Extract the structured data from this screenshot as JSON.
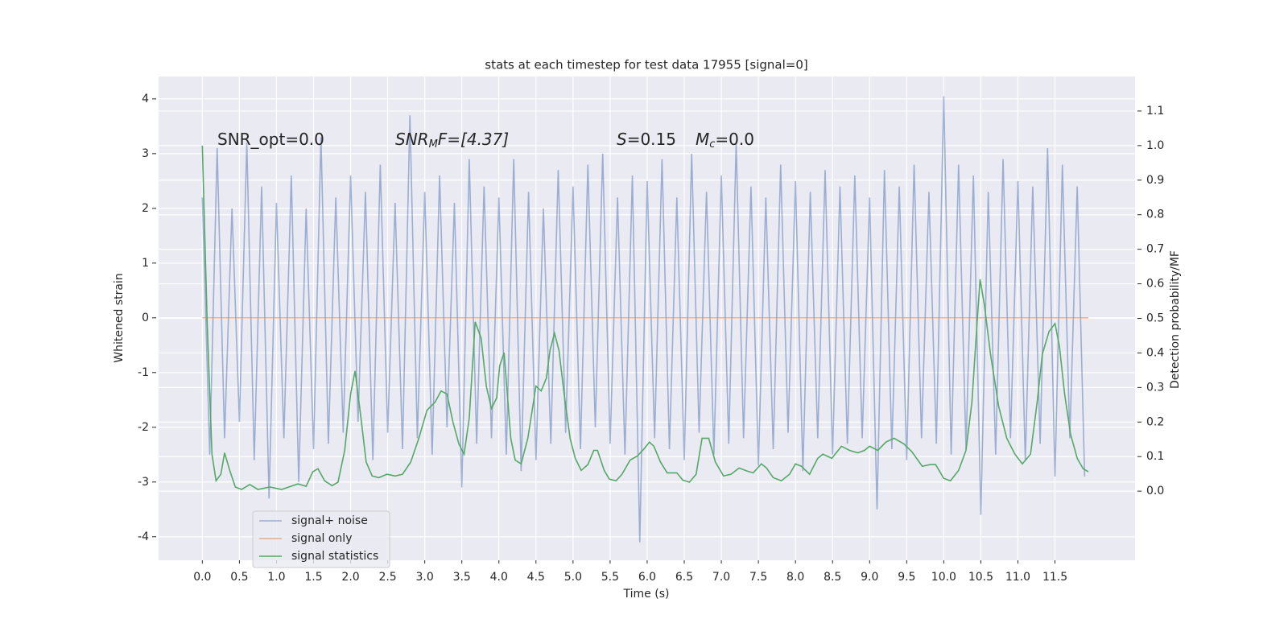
{
  "chart_data": {
    "type": "line",
    "title": "stats at each timestep for test data 17955 [signal=0]",
    "x_label": "Time (s)",
    "y_label": "Whitened strain",
    "y2_label": "Detection probability/MF",
    "annotations": [
      {
        "parts": [
          "SNR_opt=0.0"
        ]
      },
      {
        "parts": [
          "SNR",
          "M",
          "F=[4.37]"
        ]
      },
      {
        "parts": [
          "S",
          "=0.15",
          "M",
          "c",
          "=0.0"
        ]
      }
    ],
    "xlim": [
      -0.59,
      12.58
    ],
    "ylim": [
      -4.43,
      4.41
    ],
    "y2lim": [
      -0.2,
      1.2
    ],
    "xticks": [
      {
        "value": 0,
        "label": "0.0"
      },
      {
        "value": 0.5,
        "label": "0.5"
      },
      {
        "value": 1,
        "label": "1.0"
      },
      {
        "value": 1.5,
        "label": "1.5"
      },
      {
        "value": 2,
        "label": "2.0"
      },
      {
        "value": 2.5,
        "label": "2.5"
      },
      {
        "value": 3,
        "label": "3.0"
      },
      {
        "value": 3.5,
        "label": "3.5"
      },
      {
        "value": 4,
        "label": "4.0"
      },
      {
        "value": 4.5,
        "label": "4.5"
      },
      {
        "value": 5,
        "label": "5.0"
      },
      {
        "value": 5.5,
        "label": "5.5"
      },
      {
        "value": 6,
        "label": "6.0"
      },
      {
        "value": 6.5,
        "label": "6.5"
      },
      {
        "value": 7,
        "label": "7.0"
      },
      {
        "value": 7.5,
        "label": "7.5"
      },
      {
        "value": 8,
        "label": "8.0"
      },
      {
        "value": 8.5,
        "label": "8.5"
      },
      {
        "value": 9,
        "label": "9.0"
      },
      {
        "value": 9.5,
        "label": "9.5"
      },
      {
        "value": 10,
        "label": "10.0"
      },
      {
        "value": 10.5,
        "label": "10.5"
      },
      {
        "value": 11,
        "label": "11.0"
      },
      {
        "value": 11.5,
        "label": "11.5"
      }
    ],
    "yticks": [
      -4,
      -3,
      -2,
      -1,
      0,
      1,
      2,
      3,
      4
    ],
    "y2ticks": [
      {
        "value": 0,
        "label": "0.0"
      },
      {
        "value": 0.1,
        "label": "0.1"
      },
      {
        "value": 0.2,
        "label": "0.2"
      },
      {
        "value": 0.3,
        "label": "0.3"
      },
      {
        "value": 0.4,
        "label": "0.4"
      },
      {
        "value": 0.5,
        "label": "0.5"
      },
      {
        "value": 0.6,
        "label": "0.6"
      },
      {
        "value": 0.7,
        "label": "0.7"
      },
      {
        "value": 0.8,
        "label": "0.8"
      },
      {
        "value": 0.9,
        "label": "0.9"
      },
      {
        "value": 1,
        "label": "1.0"
      },
      {
        "value": 1.1,
        "label": "1.1"
      }
    ],
    "grid": true,
    "legend": "lower left",
    "series": [
      {
        "name": "signal+ noise",
        "color": "#4c72b0",
        "opacity": 0.5,
        "x": [
          0,
          0.1,
          0.2,
          0.3,
          0.4,
          0.5,
          0.6,
          0.7,
          0.8,
          0.9,
          1,
          1.1,
          1.2,
          1.3,
          1.4,
          1.5,
          1.6,
          1.7,
          1.8,
          1.9,
          2,
          2.1,
          2.2,
          2.3,
          2.4,
          2.5,
          2.6,
          2.7,
          2.8,
          2.9,
          3,
          3.1,
          3.2,
          3.3,
          3.4,
          3.5,
          3.6,
          3.7,
          3.8,
          3.9,
          4,
          4.1,
          4.2,
          4.3,
          4.4,
          4.5,
          4.6,
          4.7,
          4.8,
          4.9,
          5,
          5.1,
          5.2,
          5.3,
          5.4,
          5.5,
          5.6,
          5.7,
          5.8,
          5.9,
          6,
          6.1,
          6.2,
          6.3,
          6.4,
          6.5,
          6.6,
          6.7,
          6.8,
          6.9,
          7,
          7.1,
          7.2,
          7.3,
          7.4,
          7.5,
          7.6,
          7.7,
          7.8,
          7.9,
          8,
          8.1,
          8.2,
          8.3,
          8.4,
          8.5,
          8.6,
          8.7,
          8.8,
          8.9,
          9,
          9.1,
          9.2,
          9.3,
          9.4,
          9.5,
          9.6,
          9.7,
          9.8,
          9.9,
          10,
          10.1,
          10.2,
          10.3,
          10.4,
          10.5,
          10.6,
          10.7,
          10.8,
          10.9,
          11,
          11.1,
          11.2,
          11.3,
          11.4,
          11.5,
          11.6,
          11.7,
          11.8,
          11.9
        ],
        "values": [
          2.2,
          -2.5,
          3.1,
          -2.2,
          2.0,
          -1.9,
          3.2,
          -2.6,
          2.4,
          -3.3,
          2.1,
          -2.2,
          2.6,
          -3.0,
          2.0,
          -2.4,
          3.3,
          -2.3,
          2.2,
          -2.1,
          2.6,
          -1.9,
          2.3,
          -2.6,
          2.8,
          -2.1,
          2.1,
          -2.4,
          3.7,
          -2.2,
          2.3,
          -2.5,
          2.6,
          -2.0,
          2.1,
          -3.1,
          2.9,
          -2.3,
          2.4,
          -2.2,
          2.2,
          -2.5,
          2.9,
          -2.8,
          2.3,
          -2.6,
          2.0,
          -2.3,
          2.7,
          -2.1,
          2.4,
          -2.4,
          2.8,
          -2.0,
          3.0,
          -2.3,
          2.2,
          -2.5,
          2.6,
          -4.1,
          2.5,
          -2.2,
          2.9,
          -2.4,
          2.2,
          -2.6,
          3.0,
          -2.1,
          2.3,
          -2.5,
          2.6,
          -2.3,
          3.2,
          -2.2,
          2.4,
          -2.7,
          2.2,
          -2.4,
          2.8,
          -2.1,
          2.5,
          -2.8,
          2.3,
          -2.2,
          2.7,
          -2.5,
          2.4,
          -2.3,
          2.6,
          -2.2,
          2.2,
          -3.5,
          2.7,
          -2.4,
          2.4,
          -2.6,
          2.8,
          -2.2,
          2.3,
          -2.3,
          4.05,
          -2.5,
          2.8,
          -2.4,
          2.6,
          -3.6,
          2.3,
          -2.5,
          2.9,
          -2.2,
          2.5,
          -2.6,
          2.4,
          -2.3,
          3.1,
          -2.9,
          2.8,
          -2.2,
          2.4,
          -2.9
        ]
      },
      {
        "name": "signal only",
        "color": "#dd8452",
        "opacity": 0.6,
        "x": [
          0,
          11.95
        ],
        "values": [
          0,
          0
        ]
      },
      {
        "name": "signal statistics",
        "color": "#55a868",
        "opacity": 1,
        "axis": "y2",
        "x": [
          0,
          0.065,
          0.13,
          0.185,
          0.25,
          0.3,
          0.37,
          0.445,
          0.53,
          0.64,
          0.75,
          0.91,
          1.07,
          1.29,
          1.4,
          1.49,
          1.56,
          1.65,
          1.75,
          1.83,
          1.92,
          2,
          2.06,
          2.14,
          2.21,
          2.29,
          2.38,
          2.49,
          2.6,
          2.7,
          2.81,
          2.92,
          3.03,
          3.14,
          3.22,
          3.3,
          3.38,
          3.46,
          3.53,
          3.6,
          3.68,
          3.76,
          3.83,
          3.9,
          3.97,
          4.01,
          4.07,
          4.16,
          4.22,
          4.3,
          4.39,
          4.5,
          4.57,
          4.64,
          4.69,
          4.75,
          4.81,
          4.88,
          4.96,
          5.03,
          5.11,
          5.2,
          5.28,
          5.33,
          5.42,
          5.49,
          5.58,
          5.66,
          5.77,
          5.87,
          5.96,
          6.03,
          6.09,
          6.18,
          6.27,
          6.4,
          6.48,
          6.57,
          6.66,
          6.74,
          6.83,
          6.92,
          7.03,
          7.13,
          7.24,
          7.35,
          7.43,
          7.54,
          7.61,
          7.7,
          7.81,
          7.92,
          8,
          8.08,
          8.19,
          8.3,
          8.37,
          8.49,
          8.62,
          8.73,
          8.84,
          8.93,
          9,
          9.11,
          9.22,
          9.33,
          9.46,
          9.57,
          9.71,
          9.82,
          9.89,
          10,
          10.09,
          10.2,
          10.3,
          10.38,
          10.45,
          10.49,
          10.55,
          10.63,
          10.74,
          10.85,
          10.96,
          11.06,
          11.17,
          11.26,
          11.33,
          11.42,
          11.5,
          11.56,
          11.63,
          11.71,
          11.8,
          11.88,
          11.95
        ],
        "values": [
          1.0,
          0.49,
          0.107,
          0.03,
          0.049,
          0.111,
          0.06,
          0.012,
          0.005,
          0.019,
          0.005,
          0.012,
          0.005,
          0.021,
          0.014,
          0.056,
          0.065,
          0.03,
          0.016,
          0.026,
          0.118,
          0.281,
          0.348,
          0.211,
          0.084,
          0.044,
          0.039,
          0.049,
          0.044,
          0.049,
          0.084,
          0.153,
          0.234,
          0.258,
          0.29,
          0.281,
          0.2,
          0.137,
          0.107,
          0.211,
          0.49,
          0.443,
          0.304,
          0.239,
          0.27,
          0.362,
          0.401,
          0.153,
          0.09,
          0.079,
          0.153,
          0.304,
          0.29,
          0.327,
          0.408,
          0.457,
          0.408,
          0.281,
          0.153,
          0.095,
          0.06,
          0.077,
          0.118,
          0.118,
          0.06,
          0.035,
          0.03,
          0.049,
          0.09,
          0.102,
          0.123,
          0.142,
          0.13,
          0.084,
          0.053,
          0.053,
          0.032,
          0.026,
          0.049,
          0.153,
          0.153,
          0.084,
          0.044,
          0.049,
          0.067,
          0.058,
          0.053,
          0.079,
          0.067,
          0.039,
          0.03,
          0.049,
          0.079,
          0.072,
          0.049,
          0.095,
          0.107,
          0.095,
          0.13,
          0.118,
          0.111,
          0.118,
          0.13,
          0.118,
          0.142,
          0.153,
          0.137,
          0.114,
          0.072,
          0.077,
          0.077,
          0.037,
          0.03,
          0.06,
          0.118,
          0.258,
          0.49,
          0.613,
          0.536,
          0.397,
          0.246,
          0.153,
          0.107,
          0.079,
          0.107,
          0.258,
          0.397,
          0.462,
          0.485,
          0.42,
          0.281,
          0.165,
          0.095,
          0.065,
          0.056
        ]
      }
    ]
  }
}
